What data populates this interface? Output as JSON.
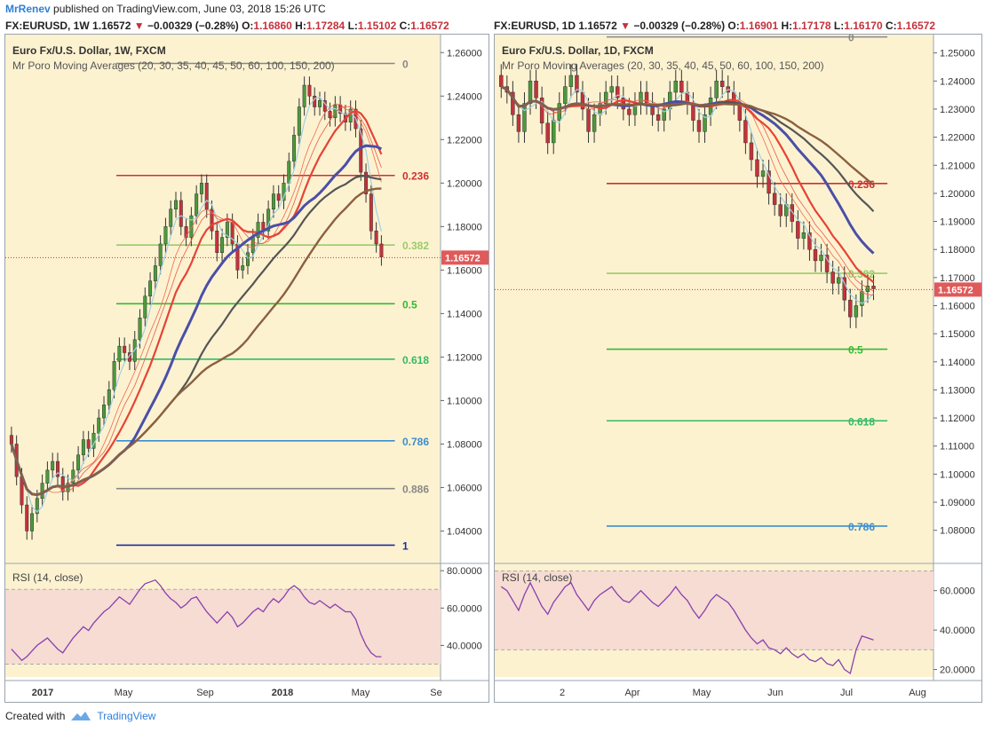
{
  "header": {
    "author": "MrRenev",
    "published": " published on TradingView.com, June 03, 2018 15:26 UTC"
  },
  "footer": {
    "created_with": "Created with",
    "brand": "TradingView"
  },
  "colors": {
    "bg": "#fdf2d0",
    "rsiBand": "#f6dcd2",
    "up": "#4b9a3c",
    "down": "#c4323b"
  },
  "left": {
    "symbol": "FX:EURUSD, 1W",
    "ohlc": {
      "price": "1.16572",
      "arrow": "▼",
      "change": "−0.00329 (−0.28%)",
      "o_label": "O:",
      "o": "1.16860",
      "h_label": "H:",
      "h": "1.17284",
      "l_label": "L:",
      "l": "1.15102",
      "c_label": "C:",
      "c": "1.16572"
    },
    "title": "Euro Fx/U.S. Dollar, 1W, FXCM",
    "indicator": "Mr Poro Moving Averages (20, 30, 35, 40, 45, 50, 60, 100, 150, 200)",
    "rsi_label": "RSI (14, close)",
    "last_price_tag": "1.16572",
    "axis_ticks": [
      "1.26000",
      "1.24000",
      "1.22000",
      "1.20000",
      "1.18000",
      "1.16000",
      "1.14000",
      "1.12000",
      "1.10000",
      "1.08000",
      "1.06000",
      "1.04000"
    ],
    "rsi_ticks": [
      "80.0000",
      "60.0000",
      "40.0000"
    ],
    "x_ticks": [
      "2017",
      "May",
      "Sep",
      "2018",
      "May",
      "Se"
    ],
    "fib_labels": [
      "0",
      "0.236",
      "0.382",
      "0.5",
      "0.618",
      "0.786",
      "0.886",
      "1"
    ]
  },
  "right": {
    "symbol": "FX:EURUSD, 1D",
    "ohlc": {
      "price": "1.16572",
      "arrow": "▼",
      "change": "−0.00329 (−0.28%)",
      "o_label": "O:",
      "o": "1.16901",
      "h_label": "H:",
      "h": "1.17178",
      "l_label": "L:",
      "l": "1.16170",
      "c_label": "C:",
      "c": "1.16572"
    },
    "title": "Euro Fx/U.S. Dollar, 1D, FXCM",
    "indicator": "Mr Poro Moving Averages (20, 30, 35, 40, 45, 50, 60, 100, 150, 200)",
    "rsi_label": "RSI (14, close)",
    "last_price_tag": "1.16572",
    "axis_ticks": [
      "1.25000",
      "1.24000",
      "1.23000",
      "1.22000",
      "1.21000",
      "1.20000",
      "1.19000",
      "1.18000",
      "1.17000",
      "1.16000",
      "1.15000",
      "1.14000",
      "1.13000",
      "1.12000",
      "1.11000",
      "1.10000",
      "1.09000",
      "1.08000"
    ],
    "rsi_ticks": [
      "60.0000",
      "40.0000",
      "20.0000"
    ],
    "x_ticks": [
      "2",
      "Apr",
      "May",
      "Jun",
      "Jul",
      "Aug"
    ],
    "fib_labels": [
      "0",
      "0.236",
      "0.382",
      "0.5",
      "0.618",
      "0.786"
    ]
  },
  "chart_data": [
    {
      "type": "candlestick",
      "title": "Euro Fx/U.S. Dollar, 1W, FXCM",
      "ylim": [
        1.03,
        1.265
      ],
      "fib_levels": [
        {
          "label": "0",
          "price": 1.255,
          "color": "#888888"
        },
        {
          "label": "0.236",
          "price": 1.2035,
          "color": "#d03030"
        },
        {
          "label": "0.382",
          "price": 1.1715,
          "color": "#9acb6b"
        },
        {
          "label": "0.5",
          "price": 1.1445,
          "color": "#33bb33"
        },
        {
          "label": "0.618",
          "price": 1.119,
          "color": "#33bb66"
        },
        {
          "label": "0.786",
          "price": 1.0815,
          "color": "#3a8ecf"
        },
        {
          "label": "0.886",
          "price": 1.0595,
          "color": "#888888"
        },
        {
          "label": "1",
          "price": 1.0335,
          "color": "#1a2da0"
        }
      ],
      "last_price": 1.16572,
      "close_series": [
        1.08,
        1.065,
        1.052,
        1.04,
        1.048,
        1.055,
        1.062,
        1.068,
        1.072,
        1.065,
        1.058,
        1.062,
        1.068,
        1.075,
        1.082,
        1.078,
        1.085,
        1.092,
        1.098,
        1.105,
        1.118,
        1.125,
        1.122,
        1.118,
        1.128,
        1.138,
        1.148,
        1.155,
        1.162,
        1.172,
        1.18,
        1.188,
        1.192,
        1.18,
        1.175,
        1.185,
        1.195,
        1.2,
        1.188,
        1.178,
        1.168,
        1.175,
        1.182,
        1.172,
        1.16,
        1.162,
        1.168,
        1.175,
        1.182,
        1.178,
        1.188,
        1.195,
        1.192,
        1.2,
        1.21,
        1.222,
        1.235,
        1.245,
        1.24,
        1.235,
        1.238,
        1.233,
        1.23,
        1.236,
        1.232,
        1.228,
        1.234,
        1.225,
        1.205,
        1.195,
        1.178,
        1.172,
        1.166
      ],
      "rsi": {
        "ylim": [
          25,
          82
        ],
        "bands": [
          30,
          70
        ],
        "values": [
          38,
          35,
          32,
          34,
          37,
          40,
          42,
          44,
          41,
          38,
          36,
          40,
          44,
          47,
          50,
          48,
          52,
          55,
          58,
          60,
          63,
          66,
          64,
          62,
          66,
          70,
          73,
          74,
          75,
          72,
          68,
          65,
          63,
          60,
          62,
          65,
          66,
          62,
          58,
          55,
          52,
          55,
          58,
          55,
          50,
          52,
          55,
          58,
          60,
          58,
          62,
          65,
          63,
          66,
          70,
          72,
          70,
          66,
          63,
          62,
          64,
          62,
          60,
          62,
          60,
          58,
          58,
          54,
          46,
          40,
          36,
          34,
          34
        ]
      }
    },
    {
      "type": "candlestick",
      "title": "Euro Fx/U.S. Dollar, 1D, FXCM",
      "ylim": [
        1.072,
        1.254
      ],
      "fib_levels": [
        {
          "label": "0",
          "price": 1.2557,
          "color": "#888888"
        },
        {
          "label": "0.236",
          "price": 1.2035,
          "color": "#d03030"
        },
        {
          "label": "0.382",
          "price": 1.1715,
          "color": "#9acb6b"
        },
        {
          "label": "0.5",
          "price": 1.1445,
          "color": "#33bb33"
        },
        {
          "label": "0.618",
          "price": 1.119,
          "color": "#33bb66"
        },
        {
          "label": "0.786",
          "price": 1.0815,
          "color": "#3a8ecf"
        }
      ],
      "last_price": 1.16572,
      "close_series": [
        1.238,
        1.236,
        1.228,
        1.222,
        1.232,
        1.24,
        1.234,
        1.225,
        1.218,
        1.226,
        1.232,
        1.238,
        1.242,
        1.236,
        1.23,
        1.222,
        1.228,
        1.232,
        1.236,
        1.238,
        1.234,
        1.23,
        1.228,
        1.232,
        1.236,
        1.232,
        1.228,
        1.226,
        1.23,
        1.236,
        1.24,
        1.236,
        1.232,
        1.226,
        1.222,
        1.228,
        1.234,
        1.24,
        1.238,
        1.236,
        1.232,
        1.226,
        1.218,
        1.212,
        1.206,
        1.208,
        1.2,
        1.196,
        1.192,
        1.196,
        1.19,
        1.184,
        1.186,
        1.18,
        1.176,
        1.178,
        1.172,
        1.168,
        1.17,
        1.162,
        1.156,
        1.16,
        1.165,
        1.167,
        1.166
      ],
      "rsi": {
        "ylim": [
          18,
          72
        ],
        "bands": [
          30,
          70
        ],
        "values": [
          62,
          60,
          55,
          50,
          58,
          64,
          58,
          52,
          48,
          54,
          58,
          62,
          64,
          58,
          54,
          50,
          55,
          58,
          60,
          62,
          58,
          55,
          54,
          57,
          60,
          57,
          54,
          52,
          55,
          58,
          62,
          58,
          55,
          50,
          46,
          50,
          55,
          58,
          56,
          54,
          50,
          45,
          40,
          36,
          33,
          35,
          31,
          30,
          28,
          31,
          28,
          26,
          28,
          25,
          24,
          26,
          23,
          22,
          25,
          20,
          18,
          30,
          37,
          36,
          35
        ]
      }
    }
  ]
}
